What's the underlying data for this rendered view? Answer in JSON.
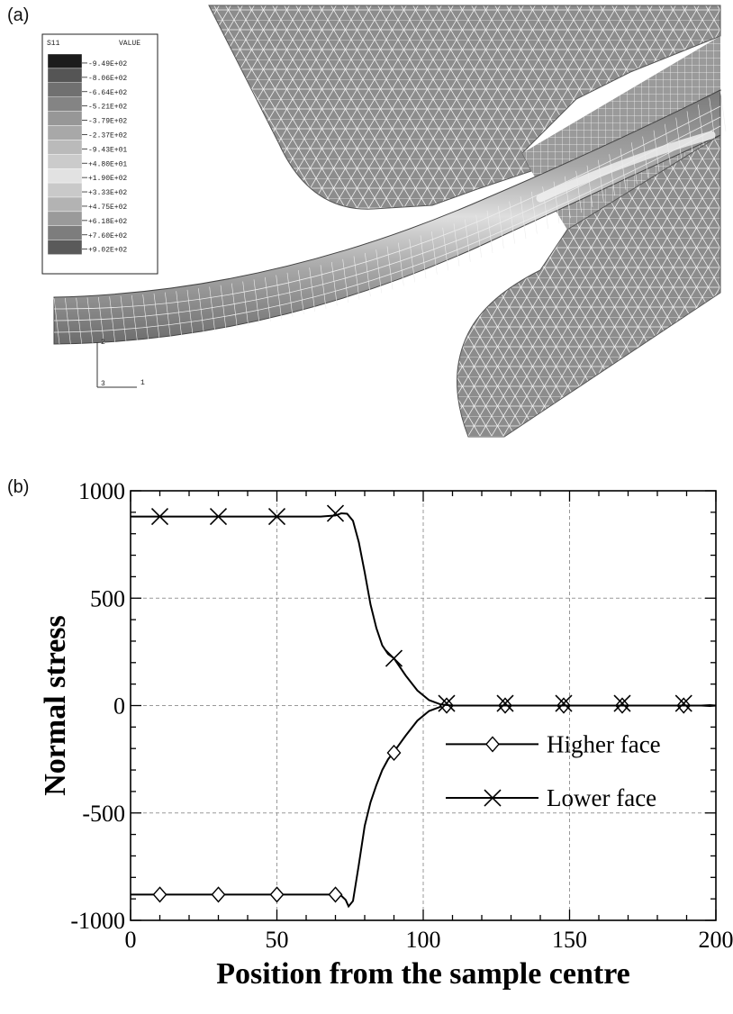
{
  "panels": {
    "a_label": "(a)",
    "b_label": "(b)"
  },
  "fe_figure": {
    "legend": {
      "variable": "S11",
      "value_header": "VALUE",
      "levels": [
        "-9.49E+02",
        "-8.06E+02",
        "-6.64E+02",
        "-5.21E+02",
        "-3.79E+02",
        "-2.37E+02",
        "-9.43E+01",
        "+4.80E+01",
        "+1.90E+02",
        "+3.33E+02",
        "+4.75E+02",
        "+6.18E+02",
        "+7.60E+02",
        "+9.02E+02"
      ],
      "colors": [
        "#1c1c1c",
        "#555555",
        "#707070",
        "#848484",
        "#979797",
        "#a8a8a8",
        "#bababa",
        "#cbcbcb",
        "#e2e2e2",
        "#c9c9c9",
        "#b3b3b3",
        "#9a9a9a",
        "#7d7d7d",
        "#5a5a5a"
      ]
    },
    "triad": {
      "axis_2": "2",
      "axis_3": "3",
      "axis_1": "1"
    },
    "mesh_colors": {
      "die": "#8c8c8c",
      "strip": "#a0a0a0",
      "lines": "#f2f2f2"
    }
  },
  "chart_data": {
    "type": "line",
    "title": "",
    "xlabel": "Position from the sample centre",
    "ylabel": "Normal stress",
    "xlim": [
      0,
      200
    ],
    "ylim": [
      -1000,
      1000
    ],
    "xticks": [
      0,
      50,
      100,
      150,
      200
    ],
    "yticks": [
      -1000,
      -500,
      0,
      500,
      1000
    ],
    "grid": "dashed",
    "legend_position": "lower-right",
    "series": [
      {
        "name": "Higher face",
        "marker": "diamond",
        "x": [
          0,
          10,
          30,
          50,
          70,
          72,
          73.5,
          74.5,
          76,
          78,
          80,
          82,
          84,
          86,
          88,
          90,
          94,
          98,
          102,
          106,
          110,
          120,
          140,
          160,
          180,
          195,
          198,
          200
        ],
        "y": [
          -880,
          -880,
          -880,
          -880,
          -880,
          -885,
          -905,
          -935,
          -910,
          -740,
          -560,
          -450,
          -370,
          -300,
          -250,
          -215,
          -140,
          -70,
          -25,
          -5,
          0,
          0,
          0,
          0,
          0,
          0,
          -2,
          0
        ],
        "marker_x": [
          10,
          30,
          50,
          70,
          90,
          108,
          128,
          148,
          168,
          189
        ],
        "marker_y": [
          -880,
          -880,
          -880,
          -880,
          -220,
          0,
          0,
          0,
          0,
          0
        ]
      },
      {
        "name": "Lower face",
        "marker": "cross",
        "x": [
          0,
          10,
          30,
          50,
          65,
          70,
          72,
          74,
          76,
          78,
          80,
          82,
          84,
          86,
          88,
          90,
          94,
          98,
          102,
          106,
          110,
          120,
          140,
          160,
          180,
          195,
          198,
          200
        ],
        "y": [
          880,
          880,
          880,
          880,
          880,
          885,
          895,
          893,
          860,
          760,
          620,
          470,
          360,
          280,
          240,
          220,
          140,
          70,
          25,
          5,
          0,
          0,
          0,
          0,
          0,
          0,
          2,
          0
        ],
        "marker_x": [
          10,
          30,
          50,
          70,
          90,
          108,
          128,
          148,
          168,
          189
        ],
        "marker_y": [
          880,
          880,
          880,
          895,
          220,
          10,
          10,
          10,
          10,
          10
        ]
      }
    ]
  }
}
